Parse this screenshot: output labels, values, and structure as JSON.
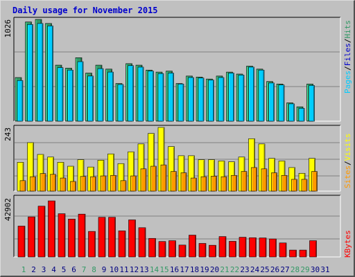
{
  "title": "Daily usage for November 2015",
  "colors": {
    "hits": "#339966",
    "files": "#00ccff",
    "pages": "#00ccff",
    "visits": "#ffff00",
    "sites": "#ff9900",
    "kbytes": "#ff0000",
    "label_hits": "#339966",
    "label_files": "#0000cc",
    "label_pages": "#00ccff",
    "label_visits": "#ffff00",
    "label_sites": "#ff9900",
    "label_kbytes": "#ff0000",
    "weekend_day": "#339966",
    "weekday": "#000080"
  },
  "legend": {
    "top": [
      "Pages",
      "Files",
      "Hits"
    ],
    "mid": [
      "Sites",
      "Visits"
    ],
    "bottom": [
      "KBytes"
    ],
    "sep": "/"
  },
  "chart_data": [
    {
      "type": "bar",
      "panel": "hits-files-pages",
      "ymax_label": "1026",
      "ylim": [
        0,
        1026
      ],
      "categories": [
        "1",
        "2",
        "3",
        "4",
        "5",
        "6",
        "7",
        "8",
        "9",
        "10",
        "11",
        "12",
        "13",
        "14",
        "15",
        "16",
        "17",
        "18",
        "19",
        "20",
        "21",
        "22",
        "23",
        "24",
        "25",
        "26",
        "27",
        "28",
        "29",
        "30",
        "31"
      ],
      "series": [
        {
          "name": "Hits",
          "values": [
            440,
            1000,
            1026,
            985,
            565,
            535,
            640,
            485,
            565,
            525,
            380,
            580,
            565,
            515,
            495,
            505,
            380,
            455,
            445,
            425,
            455,
            495,
            475,
            555,
            525,
            400,
            375,
            185,
            145,
            375,
            0
          ]
        },
        {
          "name": "Files",
          "values": [
            410,
            975,
            985,
            960,
            540,
            515,
            600,
            455,
            530,
            495,
            370,
            560,
            545,
            505,
            480,
            485,
            375,
            440,
            435,
            415,
            440,
            485,
            465,
            545,
            515,
            385,
            365,
            175,
            130,
            360,
            0
          ]
        },
        {
          "name": "Pages",
          "values": [
            410,
            975,
            985,
            960,
            540,
            515,
            600,
            455,
            530,
            495,
            370,
            560,
            545,
            505,
            480,
            485,
            375,
            440,
            435,
            415,
            440,
            485,
            465,
            545,
            515,
            385,
            365,
            175,
            130,
            360,
            0
          ]
        }
      ]
    },
    {
      "type": "bar",
      "panel": "visits-sites",
      "ymax_label": "243",
      "ylim": [
        0,
        243
      ],
      "categories": [
        "1",
        "2",
        "3",
        "4",
        "5",
        "6",
        "7",
        "8",
        "9",
        "10",
        "11",
        "12",
        "13",
        "14",
        "15",
        "16",
        "17",
        "18",
        "19",
        "20",
        "21",
        "22",
        "23",
        "24",
        "25",
        "26",
        "27",
        "28",
        "29",
        "30",
        "31"
      ],
      "series": [
        {
          "name": "Visits",
          "values": [
            110,
            185,
            140,
            130,
            110,
            95,
            120,
            92,
            118,
            142,
            105,
            150,
            180,
            220,
            243,
            170,
            135,
            135,
            120,
            120,
            115,
            112,
            130,
            200,
            180,
            125,
            115,
            90,
            68,
            125,
            0
          ]
        },
        {
          "name": "Sites",
          "values": [
            40,
            55,
            67,
            64,
            50,
            37,
            56,
            55,
            58,
            60,
            40,
            58,
            85,
            95,
            100,
            75,
            70,
            50,
            55,
            57,
            55,
            60,
            75,
            90,
            85,
            70,
            60,
            45,
            45,
            75,
            0
          ]
        }
      ]
    },
    {
      "type": "bar",
      "panel": "kbytes",
      "ymax_label": "42902",
      "ylim": [
        0,
        42902
      ],
      "categories": [
        "1",
        "2",
        "3",
        "4",
        "5",
        "6",
        "7",
        "8",
        "9",
        "10",
        "11",
        "12",
        "13",
        "14",
        "15",
        "16",
        "17",
        "18",
        "19",
        "20",
        "21",
        "22",
        "23",
        "24",
        "25",
        "26",
        "27",
        "28",
        "29",
        "30",
        "31"
      ],
      "series": [
        {
          "name": "KBytes",
          "values": [
            22470,
            29200,
            37000,
            40850,
            31500,
            27600,
            31200,
            18600,
            28900,
            28900,
            19000,
            27000,
            21300,
            13500,
            11250,
            11850,
            8650,
            15900,
            9850,
            8500,
            14850,
            11400,
            14350,
            14000,
            13850,
            13100,
            10200,
            5000,
            5000,
            11850,
            0
          ]
        }
      ]
    }
  ],
  "weekend_days": [
    1,
    7,
    8,
    14,
    15,
    21,
    22,
    28,
    29
  ]
}
